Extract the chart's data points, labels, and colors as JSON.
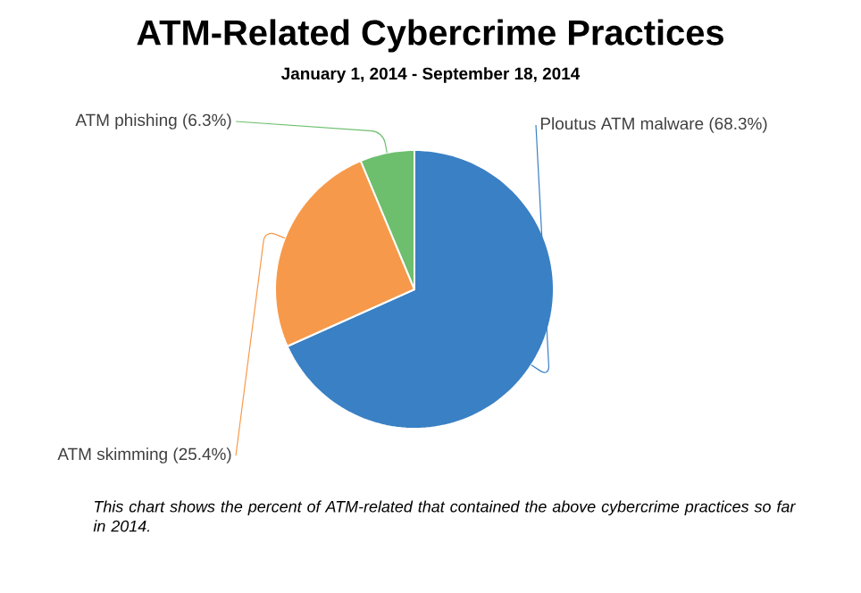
{
  "chart_data": {
    "type": "pie",
    "title": "ATM-Related Cybercrime Practices",
    "subtitle": "January 1, 2014 - September 18, 2014",
    "categories": [
      "Ploutus ATM malware",
      "ATM skimming",
      "ATM phishing"
    ],
    "values": [
      68.3,
      25.4,
      6.3
    ],
    "colors": [
      "#3a80c4",
      "#f7994a",
      "#6dbf6d"
    ],
    "value_labels": [
      "(68.3%)",
      "(25.4%)",
      "(6.3%)"
    ],
    "annotations": [
      "This chart shows the percent of ATM-related that contained the above cybercrime practices so far in 2014."
    ]
  }
}
